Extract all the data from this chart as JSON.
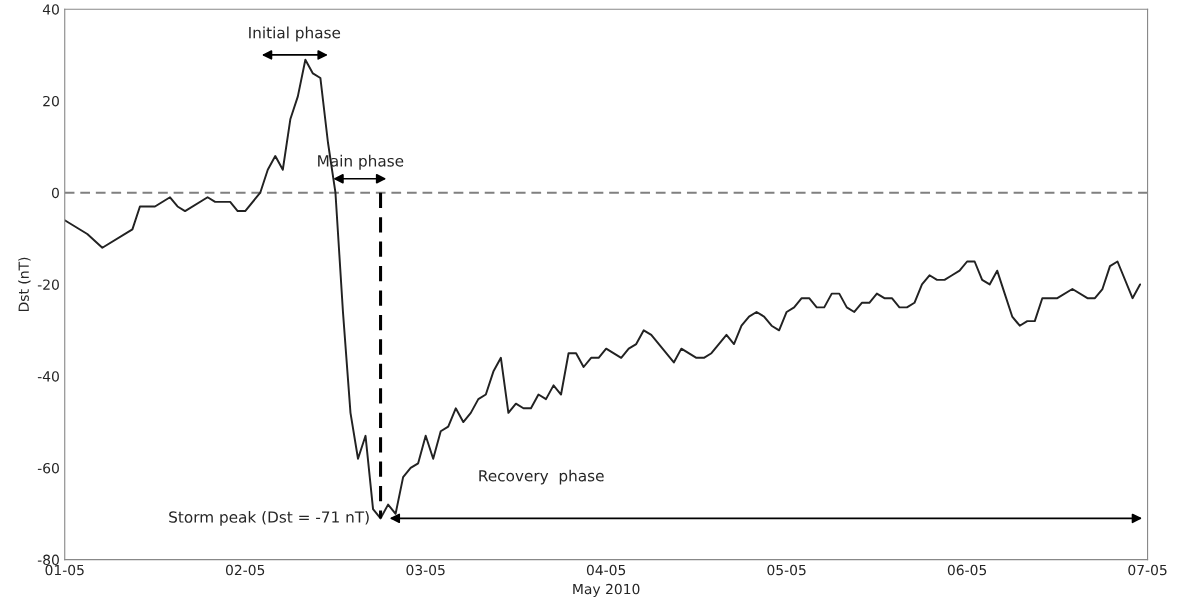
{
  "chart_data": {
    "type": "line",
    "xlabel": "May 2010",
    "ylabel": "Dst (nT)",
    "xlim": [
      "2010-05-01",
      "2010-05-07"
    ],
    "xticks": [
      {
        "value": "2010-05-01",
        "label": "01-05"
      },
      {
        "value": "2010-05-02",
        "label": "02-05"
      },
      {
        "value": "2010-05-03",
        "label": "03-05"
      },
      {
        "value": "2010-05-04",
        "label": "04-05"
      },
      {
        "value": "2010-05-05",
        "label": "05-05"
      },
      {
        "value": "2010-05-06",
        "label": "06-05"
      },
      {
        "value": "2010-05-07",
        "label": "07-05"
      }
    ],
    "ylim": [
      -80,
      40
    ],
    "yticks": [
      -80,
      -60,
      -40,
      -20,
      0,
      20,
      40
    ],
    "grid": false,
    "legend": false,
    "series": [
      {
        "color": "#222222",
        "line_style": "solid",
        "marker": "none",
        "x": [
          "2010-05-01T00:00",
          "2010-05-01T03:00",
          "2010-05-01T05:00",
          "2010-05-01T09:00",
          "2010-05-01T10:00",
          "2010-05-01T12:00",
          "2010-05-01T14:00",
          "2010-05-01T15:00",
          "2010-05-01T16:00",
          "2010-05-01T19:00",
          "2010-05-01T20:00",
          "2010-05-01T22:00",
          "2010-05-01T23:00",
          "2010-05-02T00:00",
          "2010-05-02T02:00",
          "2010-05-02T03:00",
          "2010-05-02T04:00",
          "2010-05-02T05:00",
          "2010-05-02T06:00",
          "2010-05-02T07:00",
          "2010-05-02T08:00",
          "2010-05-02T09:00",
          "2010-05-02T10:00",
          "2010-05-02T11:00",
          "2010-05-02T12:00",
          "2010-05-02T13:00",
          "2010-05-02T14:00",
          "2010-05-02T15:00",
          "2010-05-02T16:00",
          "2010-05-02T17:00",
          "2010-05-02T18:00",
          "2010-05-02T19:00",
          "2010-05-02T20:00",
          "2010-05-02T21:00",
          "2010-05-02T22:00",
          "2010-05-02T23:00",
          "2010-05-03T00:00",
          "2010-05-03T01:00",
          "2010-05-03T02:00",
          "2010-05-03T03:00",
          "2010-05-03T04:00",
          "2010-05-03T05:00",
          "2010-05-03T06:00",
          "2010-05-03T07:00",
          "2010-05-03T08:00",
          "2010-05-03T09:00",
          "2010-05-03T10:00",
          "2010-05-03T11:00",
          "2010-05-03T12:00",
          "2010-05-03T13:00",
          "2010-05-03T14:00",
          "2010-05-03T15:00",
          "2010-05-03T16:00",
          "2010-05-03T17:00",
          "2010-05-03T18:00",
          "2010-05-03T19:00",
          "2010-05-03T20:00",
          "2010-05-03T21:00",
          "2010-05-03T22:00",
          "2010-05-03T23:00",
          "2010-05-04T00:00",
          "2010-05-04T02:00",
          "2010-05-04T03:00",
          "2010-05-04T04:00",
          "2010-05-04T05:00",
          "2010-05-04T06:00",
          "2010-05-04T09:00",
          "2010-05-04T10:00",
          "2010-05-04T12:00",
          "2010-05-04T13:00",
          "2010-05-04T14:00",
          "2010-05-04T16:00",
          "2010-05-04T17:00",
          "2010-05-04T18:00",
          "2010-05-04T19:00",
          "2010-05-04T20:00",
          "2010-05-04T21:00",
          "2010-05-04T22:00",
          "2010-05-04T23:00",
          "2010-05-05T00:00",
          "2010-05-05T01:00",
          "2010-05-05T02:00",
          "2010-05-05T03:00",
          "2010-05-05T04:00",
          "2010-05-05T05:00",
          "2010-05-05T06:00",
          "2010-05-05T07:00",
          "2010-05-05T08:00",
          "2010-05-05T09:00",
          "2010-05-05T10:00",
          "2010-05-05T11:00",
          "2010-05-05T12:00",
          "2010-05-05T13:00",
          "2010-05-05T14:00",
          "2010-05-05T15:00",
          "2010-05-05T16:00",
          "2010-05-05T17:00",
          "2010-05-05T18:00",
          "2010-05-05T19:00",
          "2010-05-05T20:00",
          "2010-05-05T21:00",
          "2010-05-05T22:00",
          "2010-05-05T23:00",
          "2010-05-06T00:00",
          "2010-05-06T01:00",
          "2010-05-06T02:00",
          "2010-05-06T03:00",
          "2010-05-06T04:00",
          "2010-05-06T05:00",
          "2010-05-06T06:00",
          "2010-05-06T07:00",
          "2010-05-06T08:00",
          "2010-05-06T09:00",
          "2010-05-06T10:00",
          "2010-05-06T12:00",
          "2010-05-06T14:00",
          "2010-05-06T16:00",
          "2010-05-06T17:00",
          "2010-05-06T18:00",
          "2010-05-06T19:00",
          "2010-05-06T20:00",
          "2010-05-06T22:00",
          "2010-05-06T23:00"
        ],
        "values": [
          -6,
          -9,
          -12,
          -8,
          -3,
          -3,
          -1,
          -3,
          -4,
          -1,
          -2,
          -2,
          -4,
          -4,
          0,
          5,
          8,
          5,
          16,
          21,
          29,
          26,
          25,
          11,
          0,
          -26,
          -48,
          -58,
          -53,
          -69,
          -71,
          -68,
          -70,
          -62,
          -60,
          -59,
          -53,
          -58,
          -52,
          -51,
          -47,
          -50,
          -48,
          -45,
          -44,
          -39,
          -36,
          -48,
          -46,
          -47,
          -47,
          -44,
          -45,
          -42,
          -44,
          -35,
          -35,
          -38,
          -36,
          -36,
          -34,
          -36,
          -34,
          -33,
          -30,
          -31,
          -37,
          -34,
          -36,
          -36,
          -35,
          -31,
          -33,
          -29,
          -27,
          -26,
          -27,
          -29,
          -30,
          -26,
          -25,
          -23,
          -23,
          -25,
          -25,
          -22,
          -22,
          -25,
          -26,
          -24,
          -24,
          -22,
          -23,
          -23,
          -25,
          -25,
          -24,
          -20,
          -18,
          -19,
          -19,
          -18,
          -17,
          -15,
          -15,
          -19,
          -20,
          -17,
          -22,
          -27,
          -29,
          -28,
          -28,
          -23,
          -23,
          -21,
          -23,
          -23,
          -21,
          -16,
          -15,
          -23,
          -20
        ]
      },
      {
        "color": "#000000",
        "line_style": "dashed",
        "marker": "none",
        "x": [
          "2010-05-02T18:00",
          "2010-05-02T18:00"
        ],
        "values": [
          0,
          -71
        ]
      }
    ],
    "ref_lines": [
      {
        "axis": "y",
        "value": 0,
        "color": "#808080",
        "line_style": "dashed"
      }
    ],
    "annotations": [
      "Initial phase",
      "Main phase",
      "Storm peak (Dst = -71 nT)",
      "Recovery  phase"
    ]
  }
}
